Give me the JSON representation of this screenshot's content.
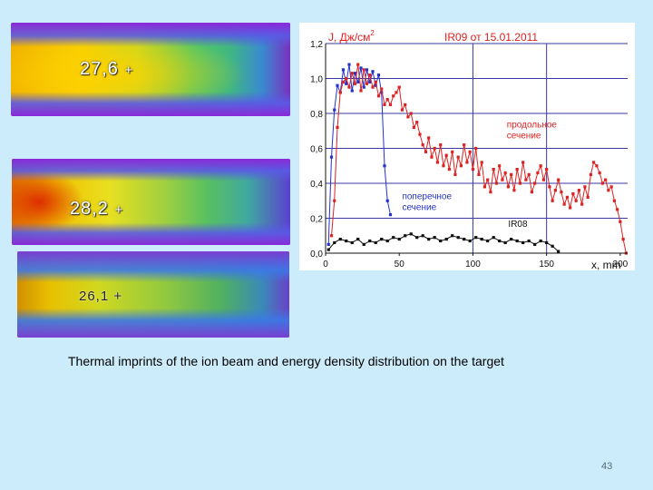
{
  "thermal_images": [
    {
      "temperature": "27,6",
      "marker": "+"
    },
    {
      "temperature": "28,2",
      "marker": "+"
    },
    {
      "temperature": "26,1",
      "marker": "+"
    }
  ],
  "caption": "Thermal imprints  of the ion beam and energy density distribution on the target",
  "page_number": "43",
  "colors": {
    "blue_series": "#2233cc",
    "red_series": "#dd2222",
    "black_series": "#111111",
    "grid": "#3a3aa0",
    "annotation": "#e02020"
  },
  "chart_data": {
    "type": "line",
    "title": "IR09 от 15.01.2011",
    "ylabel": "J, Дж/см",
    "ylabel_superscript": "2",
    "xlabel": "x, mm",
    "xlim": [
      0,
      205
    ],
    "ylim": [
      0,
      1.2
    ],
    "x_ticks": [
      "0",
      "50",
      "100",
      "150",
      "200"
    ],
    "y_ticks": [
      "0,0",
      "0,2",
      "0,4",
      "0,6",
      "0,8",
      "1,0",
      "1,2"
    ],
    "vertical_gridlines": [
      100,
      150
    ],
    "annotations": [
      {
        "text": "продольное\nсечение",
        "x": 123,
        "y": 0.72,
        "color": "#e02020"
      },
      {
        "text": "поперечное\nсечение",
        "x": 52,
        "y": 0.31,
        "color": "#2233cc"
      },
      {
        "text": "IR08",
        "x": 124,
        "y": 0.15,
        "color": "#111111"
      }
    ],
    "series": [
      {
        "color": "#2233cc",
        "x": [
          2,
          4,
          6,
          8,
          10,
          12,
          14,
          16,
          18,
          20,
          22,
          24,
          26,
          28,
          30,
          32,
          34,
          36,
          38,
          40,
          42,
          44
        ],
        "values": [
          0.05,
          0.55,
          0.82,
          0.96,
          0.92,
          1.05,
          0.97,
          1.08,
          0.93,
          1.03,
          0.98,
          1.06,
          0.95,
          1.05,
          0.98,
          1.04,
          0.96,
          1.02,
          0.92,
          0.5,
          0.3,
          0.22
        ]
      },
      {
        "color": "#dd2222",
        "x": [
          4,
          6,
          8,
          10,
          12,
          14,
          16,
          18,
          20,
          22,
          24,
          26,
          28,
          30,
          32,
          34,
          36,
          38,
          40,
          42,
          44,
          46,
          48,
          50,
          52,
          54,
          56,
          58,
          60,
          62,
          64,
          66,
          68,
          70,
          72,
          74,
          76,
          78,
          80,
          82,
          84,
          86,
          88,
          90,
          92,
          94,
          96,
          98,
          100,
          102,
          104,
          106,
          108,
          110,
          112,
          114,
          116,
          118,
          120,
          122,
          124,
          126,
          128,
          130,
          132,
          134,
          136,
          138,
          140,
          142,
          144,
          146,
          148,
          150,
          152,
          154,
          156,
          158,
          160,
          162,
          164,
          166,
          168,
          170,
          172,
          174,
          176,
          178,
          180,
          182,
          184,
          186,
          188,
          190,
          192,
          194,
          196,
          198,
          200,
          202,
          204
        ],
        "values": [
          0.1,
          0.3,
          0.72,
          0.92,
          0.98,
          1.0,
          0.95,
          1.03,
          0.97,
          1.08,
          0.93,
          1.05,
          0.97,
          1.02,
          0.95,
          0.98,
          0.9,
          0.94,
          0.85,
          0.88,
          0.85,
          0.9,
          0.92,
          0.95,
          0.82,
          0.85,
          0.78,
          0.8,
          0.72,
          0.75,
          0.68,
          0.62,
          0.58,
          0.66,
          0.55,
          0.6,
          0.52,
          0.62,
          0.5,
          0.56,
          0.48,
          0.58,
          0.45,
          0.55,
          0.5,
          0.62,
          0.52,
          0.58,
          0.48,
          0.6,
          0.45,
          0.52,
          0.38,
          0.42,
          0.35,
          0.48,
          0.4,
          0.5,
          0.42,
          0.46,
          0.38,
          0.45,
          0.36,
          0.48,
          0.4,
          0.52,
          0.42,
          0.45,
          0.35,
          0.4,
          0.46,
          0.5,
          0.42,
          0.48,
          0.38,
          0.3,
          0.36,
          0.42,
          0.35,
          0.28,
          0.32,
          0.26,
          0.34,
          0.3,
          0.36,
          0.28,
          0.38,
          0.32,
          0.45,
          0.52,
          0.5,
          0.46,
          0.4,
          0.42,
          0.36,
          0.38,
          0.3,
          0.25,
          0.18,
          0.08,
          0.0
        ]
      },
      {
        "color": "#111111",
        "x": [
          2,
          6,
          10,
          14,
          18,
          22,
          26,
          30,
          34,
          38,
          42,
          46,
          50,
          54,
          58,
          62,
          66,
          70,
          74,
          78,
          82,
          86,
          90,
          94,
          98,
          102,
          106,
          110,
          114,
          118,
          122,
          126,
          130,
          134,
          138,
          142,
          146,
          150,
          154,
          158
        ],
        "values": [
          0.02,
          0.06,
          0.08,
          0.07,
          0.06,
          0.08,
          0.05,
          0.07,
          0.06,
          0.08,
          0.07,
          0.09,
          0.08,
          0.1,
          0.11,
          0.09,
          0.1,
          0.08,
          0.09,
          0.07,
          0.08,
          0.1,
          0.09,
          0.08,
          0.07,
          0.09,
          0.08,
          0.07,
          0.09,
          0.07,
          0.06,
          0.08,
          0.07,
          0.06,
          0.07,
          0.05,
          0.07,
          0.06,
          0.04,
          0.01
        ]
      }
    ]
  }
}
